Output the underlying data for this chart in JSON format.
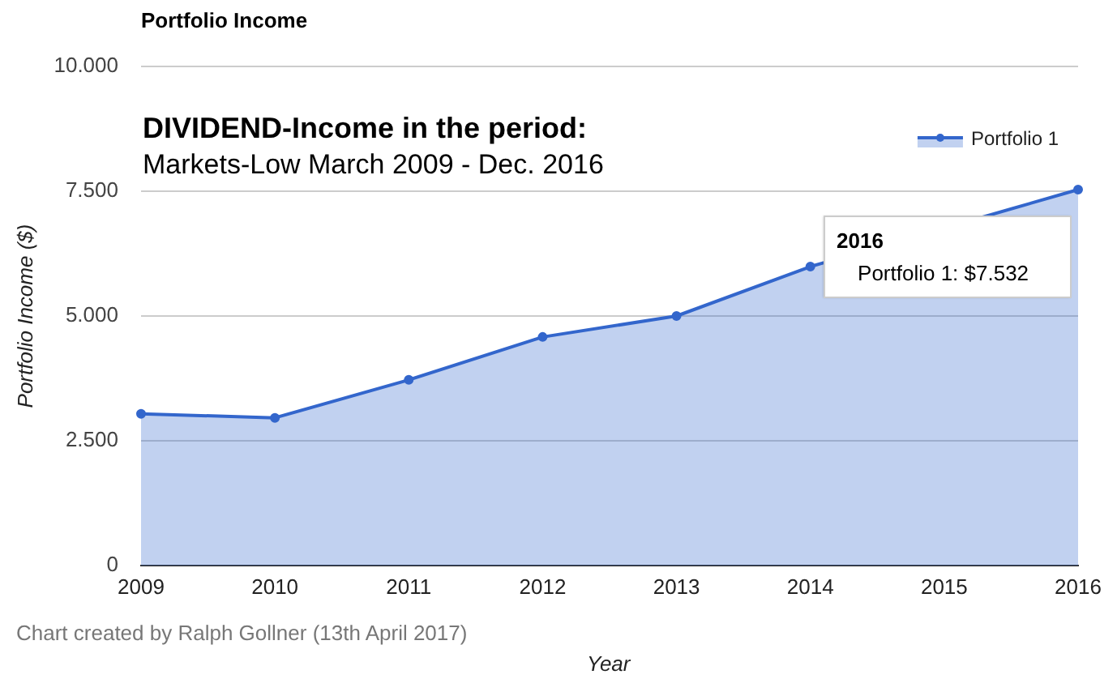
{
  "chart_data": {
    "type": "area",
    "title": "Portfolio Income",
    "xlabel": "Year",
    "ylabel": "Portfolio Income ($)",
    "categories": [
      "2009",
      "2010",
      "2011",
      "2012",
      "2013",
      "2014",
      "2015",
      "2016"
    ],
    "series": [
      {
        "name": "Portfolio 1",
        "color": "#3366cc",
        "values": [
          3040,
          2960,
          3720,
          4580,
          5000,
          5990,
          null,
          7532
        ]
      }
    ],
    "ylim": [
      0,
      10000
    ],
    "yticks": [
      0,
      {
        "value": 2500,
        "label": "2.500"
      },
      {
        "value": 5000,
        "label": "5.000"
      },
      {
        "value": 7500,
        "label": "7.500"
      },
      {
        "value": 10000,
        "label": "10.000"
      }
    ],
    "grid": "y",
    "legend": "top right",
    "marker": "circle",
    "annotations": [
      "DIVIDEND-Income in the period:",
      "Markets-Low March 2009 - Dec. 2016",
      {
        "text": "2016\nPortfolio 1: $7.532",
        "x": "2016",
        "y": 7532
      },
      "Chart created by Ralph Gollner (13th April 2017)"
    ]
  }
}
